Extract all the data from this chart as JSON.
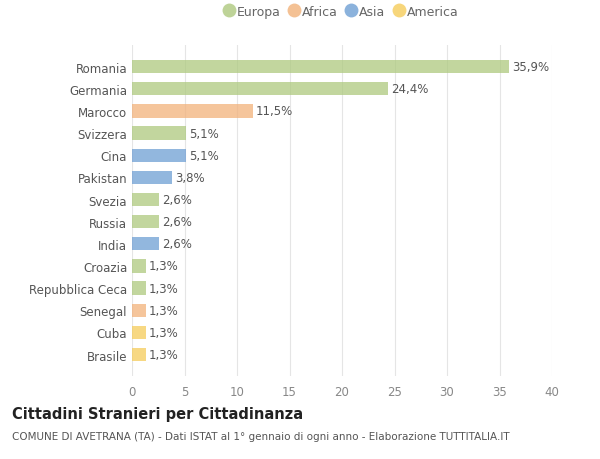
{
  "categories": [
    "Romania",
    "Germania",
    "Marocco",
    "Svizzera",
    "Cina",
    "Pakistan",
    "Svezia",
    "Russia",
    "India",
    "Croazia",
    "Repubblica Ceca",
    "Senegal",
    "Cuba",
    "Brasile"
  ],
  "values": [
    35.9,
    24.4,
    11.5,
    5.1,
    5.1,
    3.8,
    2.6,
    2.6,
    2.6,
    1.3,
    1.3,
    1.3,
    1.3,
    1.3
  ],
  "labels": [
    "35,9%",
    "24,4%",
    "11,5%",
    "5,1%",
    "5,1%",
    "3,8%",
    "2,6%",
    "2,6%",
    "2,6%",
    "1,3%",
    "1,3%",
    "1,3%",
    "1,3%",
    "1,3%"
  ],
  "continents": [
    "Europa",
    "Europa",
    "Africa",
    "Europa",
    "Asia",
    "Asia",
    "Europa",
    "Europa",
    "Asia",
    "Europa",
    "Europa",
    "Africa",
    "America",
    "America"
  ],
  "continent_colors": {
    "Europa": "#aec97e",
    "Africa": "#f2b27a",
    "Asia": "#6e9fd4",
    "America": "#f5cc5a"
  },
  "legend_order": [
    "Europa",
    "Africa",
    "Asia",
    "America"
  ],
  "title": "Cittadini Stranieri per Cittadinanza",
  "subtitle": "COMUNE DI AVETRANA (TA) - Dati ISTAT al 1° gennaio di ogni anno - Elaborazione TUTTITALIA.IT",
  "xlim": [
    0,
    40
  ],
  "xticks": [
    0,
    5,
    10,
    15,
    20,
    25,
    30,
    35,
    40
  ],
  "background_color": "#ffffff",
  "grid_color": "#e5e5e5",
  "bar_height": 0.6,
  "label_fontsize": 8.5,
  "tick_fontsize": 8.5,
  "title_fontsize": 10.5,
  "subtitle_fontsize": 7.5
}
